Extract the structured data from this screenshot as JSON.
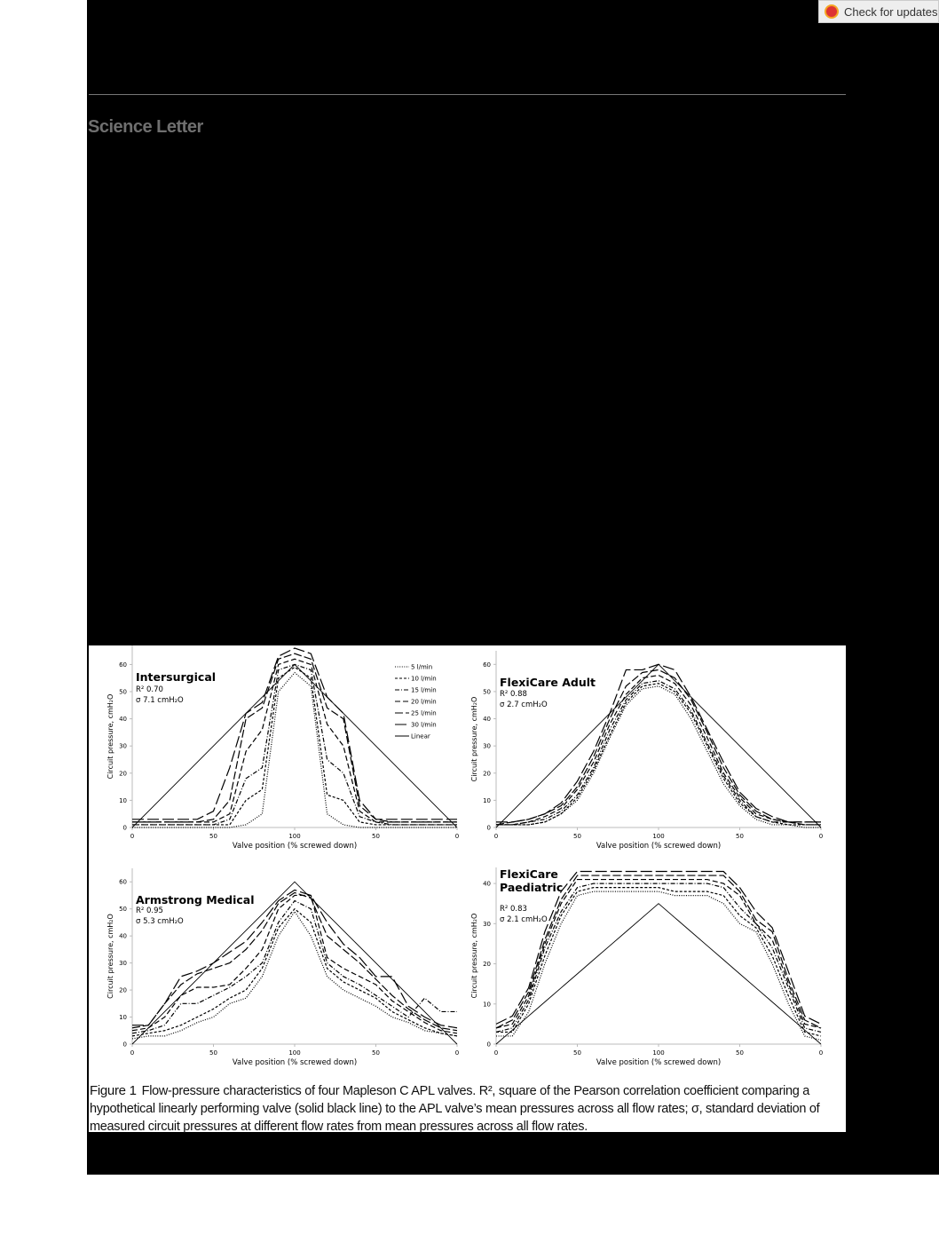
{
  "header": {
    "badge": "Check for updates",
    "section": "Science Letter"
  },
  "chart_data": [
    {
      "type": "line",
      "title": [
        "Intersurgical"
      ],
      "r2": "R² 0.70",
      "sigma": "σ  7.1 cmH₂O",
      "x_label": "Valve position (% screwed down)",
      "y_label": "Circuit pressure, cmH₂O",
      "x": [
        0,
        10,
        20,
        30,
        40,
        50,
        60,
        70,
        80,
        90,
        100,
        110,
        120,
        130,
        140,
        150,
        160,
        170,
        180,
        190,
        200
      ],
      "xlim": [
        0,
        200
      ],
      "xticks": [
        0,
        50,
        100,
        {
          "value": 150,
          "label": "50"
        },
        {
          "value": 200,
          "label": "0"
        }
      ],
      "ylim": [
        0,
        67
      ],
      "yticks": [
        0,
        10,
        20,
        30,
        40,
        50,
        60
      ],
      "color": "#000000",
      "legend": "top-right",
      "series": [
        {
          "name": "5 l/min",
          "values": [
            0,
            0,
            0,
            0,
            0,
            0,
            0,
            1,
            5,
            50,
            57,
            52,
            5,
            1,
            0,
            0,
            0,
            0,
            0,
            0,
            0
          ]
        },
        {
          "name": "10 l/min",
          "values": [
            1,
            1,
            1,
            1,
            1,
            1,
            1,
            10,
            14,
            55,
            59,
            55,
            12,
            10,
            2,
            1,
            1,
            1,
            1,
            1,
            1
          ]
        },
        {
          "name": "15 l/min",
          "values": [
            1,
            1,
            1,
            1,
            1,
            1,
            3,
            18,
            22,
            58,
            60,
            58,
            25,
            20,
            4,
            2,
            1,
            1,
            1,
            1,
            1
          ]
        },
        {
          "name": "20 l/min",
          "values": [
            2,
            2,
            2,
            2,
            2,
            2,
            5,
            28,
            36,
            60,
            62,
            60,
            38,
            30,
            6,
            2,
            2,
            2,
            2,
            2,
            2
          ]
        },
        {
          "name": "25 l/min",
          "values": [
            2,
            2,
            2,
            2,
            2,
            3,
            10,
            40,
            44,
            62,
            64,
            62,
            44,
            40,
            8,
            3,
            2,
            2,
            2,
            2,
            2
          ]
        },
        {
          "name": "30 l/min",
          "values": [
            3,
            3,
            3,
            3,
            3,
            6,
            22,
            42,
            46,
            63,
            66,
            64,
            48,
            42,
            10,
            3,
            3,
            3,
            3,
            3,
            3
          ]
        },
        {
          "name": "Linear",
          "values": [
            0,
            6,
            12,
            18,
            24,
            30,
            36,
            42,
            48,
            54,
            60,
            54,
            48,
            42,
            36,
            30,
            24,
            18,
            12,
            6,
            0
          ]
        }
      ]
    },
    {
      "type": "line",
      "title": [
        "FlexiCare Adult"
      ],
      "r2": "R² 0.88",
      "sigma": "σ  2.7 cmH₂O",
      "x_label": "Valve position (% screwed down)",
      "y_label": "Circuit pressure, cmH₂O",
      "x": [
        0,
        10,
        20,
        30,
        40,
        50,
        60,
        70,
        80,
        90,
        100,
        110,
        120,
        130,
        140,
        150,
        160,
        170,
        180,
        190,
        200
      ],
      "xlim": [
        0,
        200
      ],
      "xticks": [
        0,
        50,
        100,
        {
          "value": 150,
          "label": "50"
        },
        {
          "value": 200,
          "label": "0"
        }
      ],
      "ylim": [
        0,
        65
      ],
      "yticks": [
        0,
        10,
        20,
        30,
        40,
        50,
        60
      ],
      "color": "#000000",
      "series": [
        {
          "values": [
            1,
            1,
            1,
            2,
            5,
            10,
            20,
            33,
            45,
            51,
            52,
            49,
            40,
            28,
            16,
            8,
            3,
            1,
            1,
            0,
            0
          ]
        },
        {
          "values": [
            1,
            1,
            1,
            2,
            5,
            11,
            21,
            34,
            46,
            52,
            53,
            50,
            42,
            30,
            18,
            9,
            4,
            2,
            1,
            1,
            1
          ]
        },
        {
          "values": [
            1,
            1,
            2,
            3,
            6,
            12,
            22,
            36,
            47,
            53,
            54,
            51,
            43,
            31,
            19,
            10,
            4,
            2,
            2,
            1,
            1
          ]
        },
        {
          "values": [
            1,
            1,
            2,
            4,
            7,
            14,
            24,
            38,
            49,
            55,
            56,
            53,
            45,
            33,
            20,
            11,
            5,
            3,
            2,
            1,
            1
          ]
        },
        {
          "values": [
            1,
            2,
            3,
            5,
            8,
            15,
            26,
            40,
            52,
            57,
            58,
            55,
            47,
            35,
            22,
            12,
            6,
            3,
            2,
            2,
            2
          ]
        },
        {
          "values": [
            2,
            2,
            3,
            5,
            9,
            17,
            28,
            42,
            58,
            58,
            60,
            58,
            48,
            36,
            24,
            13,
            7,
            4,
            2,
            2,
            2
          ]
        },
        {
          "values": [
            0,
            6,
            12,
            18,
            24,
            30,
            36,
            42,
            48,
            54,
            60,
            54,
            48,
            42,
            36,
            30,
            24,
            18,
            12,
            6,
            0
          ]
        }
      ]
    },
    {
      "type": "line",
      "title": [
        "Armstrong Medical"
      ],
      "r2": "R² 0.95",
      "sigma": "σ  5.3 cmH₂O",
      "x_label": "Valve position (% screwed down)",
      "y_label": "Circuit pressure, cmH₂O",
      "x": [
        0,
        10,
        20,
        30,
        40,
        50,
        60,
        70,
        80,
        90,
        100,
        110,
        120,
        130,
        140,
        150,
        160,
        170,
        180,
        190,
        200
      ],
      "xlim": [
        0,
        200
      ],
      "xticks": [
        0,
        50,
        100,
        {
          "value": 150,
          "label": "50"
        },
        {
          "value": 200,
          "label": "0"
        }
      ],
      "ylim": [
        0,
        65
      ],
      "yticks": [
        0,
        10,
        20,
        30,
        40,
        50,
        60
      ],
      "color": "#000000",
      "series": [
        {
          "values": [
            2,
            3,
            3,
            5,
            8,
            10,
            15,
            17,
            25,
            40,
            49,
            40,
            25,
            20,
            17,
            14,
            10,
            8,
            5,
            4,
            3
          ]
        },
        {
          "values": [
            3,
            4,
            5,
            7,
            10,
            13,
            17,
            20,
            28,
            43,
            50,
            45,
            28,
            23,
            20,
            17,
            12,
            9,
            6,
            4,
            3
          ]
        },
        {
          "values": [
            4,
            5,
            7,
            15,
            15,
            18,
            21,
            25,
            30,
            45,
            53,
            50,
            30,
            25,
            22,
            18,
            14,
            10,
            17,
            12,
            12
          ]
        },
        {
          "values": [
            5,
            6,
            10,
            18,
            21,
            21,
            22,
            28,
            35,
            50,
            55,
            55,
            32,
            28,
            25,
            22,
            16,
            12,
            8,
            5,
            4
          ]
        },
        {
          "values": [
            6,
            7,
            15,
            22,
            26,
            28,
            30,
            35,
            42,
            52,
            56,
            54,
            40,
            35,
            30,
            24,
            18,
            13,
            9,
            6,
            5
          ]
        },
        {
          "values": [
            7,
            7,
            15,
            25,
            27,
            30,
            34,
            38,
            45,
            53,
            57,
            55,
            45,
            37,
            32,
            25,
            25,
            14,
            10,
            7,
            6
          ]
        },
        {
          "values": [
            0,
            6,
            12,
            18,
            24,
            30,
            36,
            42,
            48,
            54,
            60,
            54,
            48,
            42,
            36,
            30,
            24,
            18,
            12,
            6,
            0
          ]
        }
      ]
    },
    {
      "type": "line",
      "title": [
        "FlexiCare",
        "Paediatric"
      ],
      "r2": "R² 0.83",
      "sigma": "σ  2.1 cmH₂O",
      "x_label": "Valve position (% screwed down)",
      "y_label": "Circuit pressure, cmH₂O",
      "x": [
        0,
        10,
        20,
        30,
        40,
        50,
        60,
        70,
        80,
        90,
        100,
        110,
        120,
        130,
        140,
        150,
        160,
        170,
        180,
        190,
        200
      ],
      "xlim": [
        0,
        200
      ],
      "xticks": [
        0,
        50,
        100,
        {
          "value": 150,
          "label": "50"
        },
        {
          "value": 200,
          "label": "0"
        }
      ],
      "ylim": [
        0,
        44
      ],
      "yticks": [
        0,
        10,
        20,
        30,
        40
      ],
      "color": "#000000",
      "series": [
        {
          "values": [
            2,
            2,
            8,
            20,
            30,
            37,
            38,
            38,
            38,
            38,
            38,
            37,
            37,
            37,
            35,
            30,
            28,
            20,
            10,
            2,
            1
          ]
        },
        {
          "values": [
            3,
            3,
            10,
            22,
            32,
            38,
            39,
            39,
            39,
            39,
            39,
            38,
            38,
            38,
            37,
            32,
            29,
            22,
            12,
            3,
            2
          ]
        },
        {
          "values": [
            3,
            4,
            11,
            24,
            33,
            39,
            40,
            40,
            40,
            40,
            40,
            40,
            40,
            40,
            39,
            34,
            30,
            24,
            14,
            4,
            3
          ]
        },
        {
          "values": [
            4,
            5,
            12,
            25,
            35,
            41,
            41,
            41,
            41,
            41,
            41,
            41,
            41,
            41,
            40,
            37,
            30,
            26,
            15,
            5,
            4
          ]
        },
        {
          "values": [
            4,
            6,
            13,
            26,
            36,
            42,
            42,
            42,
            42,
            42,
            42,
            42,
            42,
            42,
            42,
            38,
            31,
            28,
            16,
            6,
            4
          ]
        },
        {
          "values": [
            5,
            7,
            14,
            28,
            38,
            43,
            43,
            43,
            43,
            43,
            43,
            43,
            43,
            43,
            43,
            39,
            33,
            29,
            18,
            7,
            5
          ]
        },
        {
          "values": [
            0,
            3.5,
            7,
            10.5,
            14,
            17.5,
            21,
            24.5,
            28,
            31.5,
            35,
            31.5,
            28,
            24.5,
            21,
            17.5,
            14,
            10.5,
            7,
            3.5,
            0
          ]
        }
      ]
    }
  ],
  "caption": {
    "label": "Figure 1",
    "text": "Flow-pressure characteristics of four Mapleson C APL valves. R², square of the Pearson correlation coefficient comparing a hypothetical linearly performing valve (solid black line) to the APL valve’s mean pressures across all flow rates; σ, standard deviation of measured circuit pressures at different flow rates from mean pressures across all flow rates."
  }
}
